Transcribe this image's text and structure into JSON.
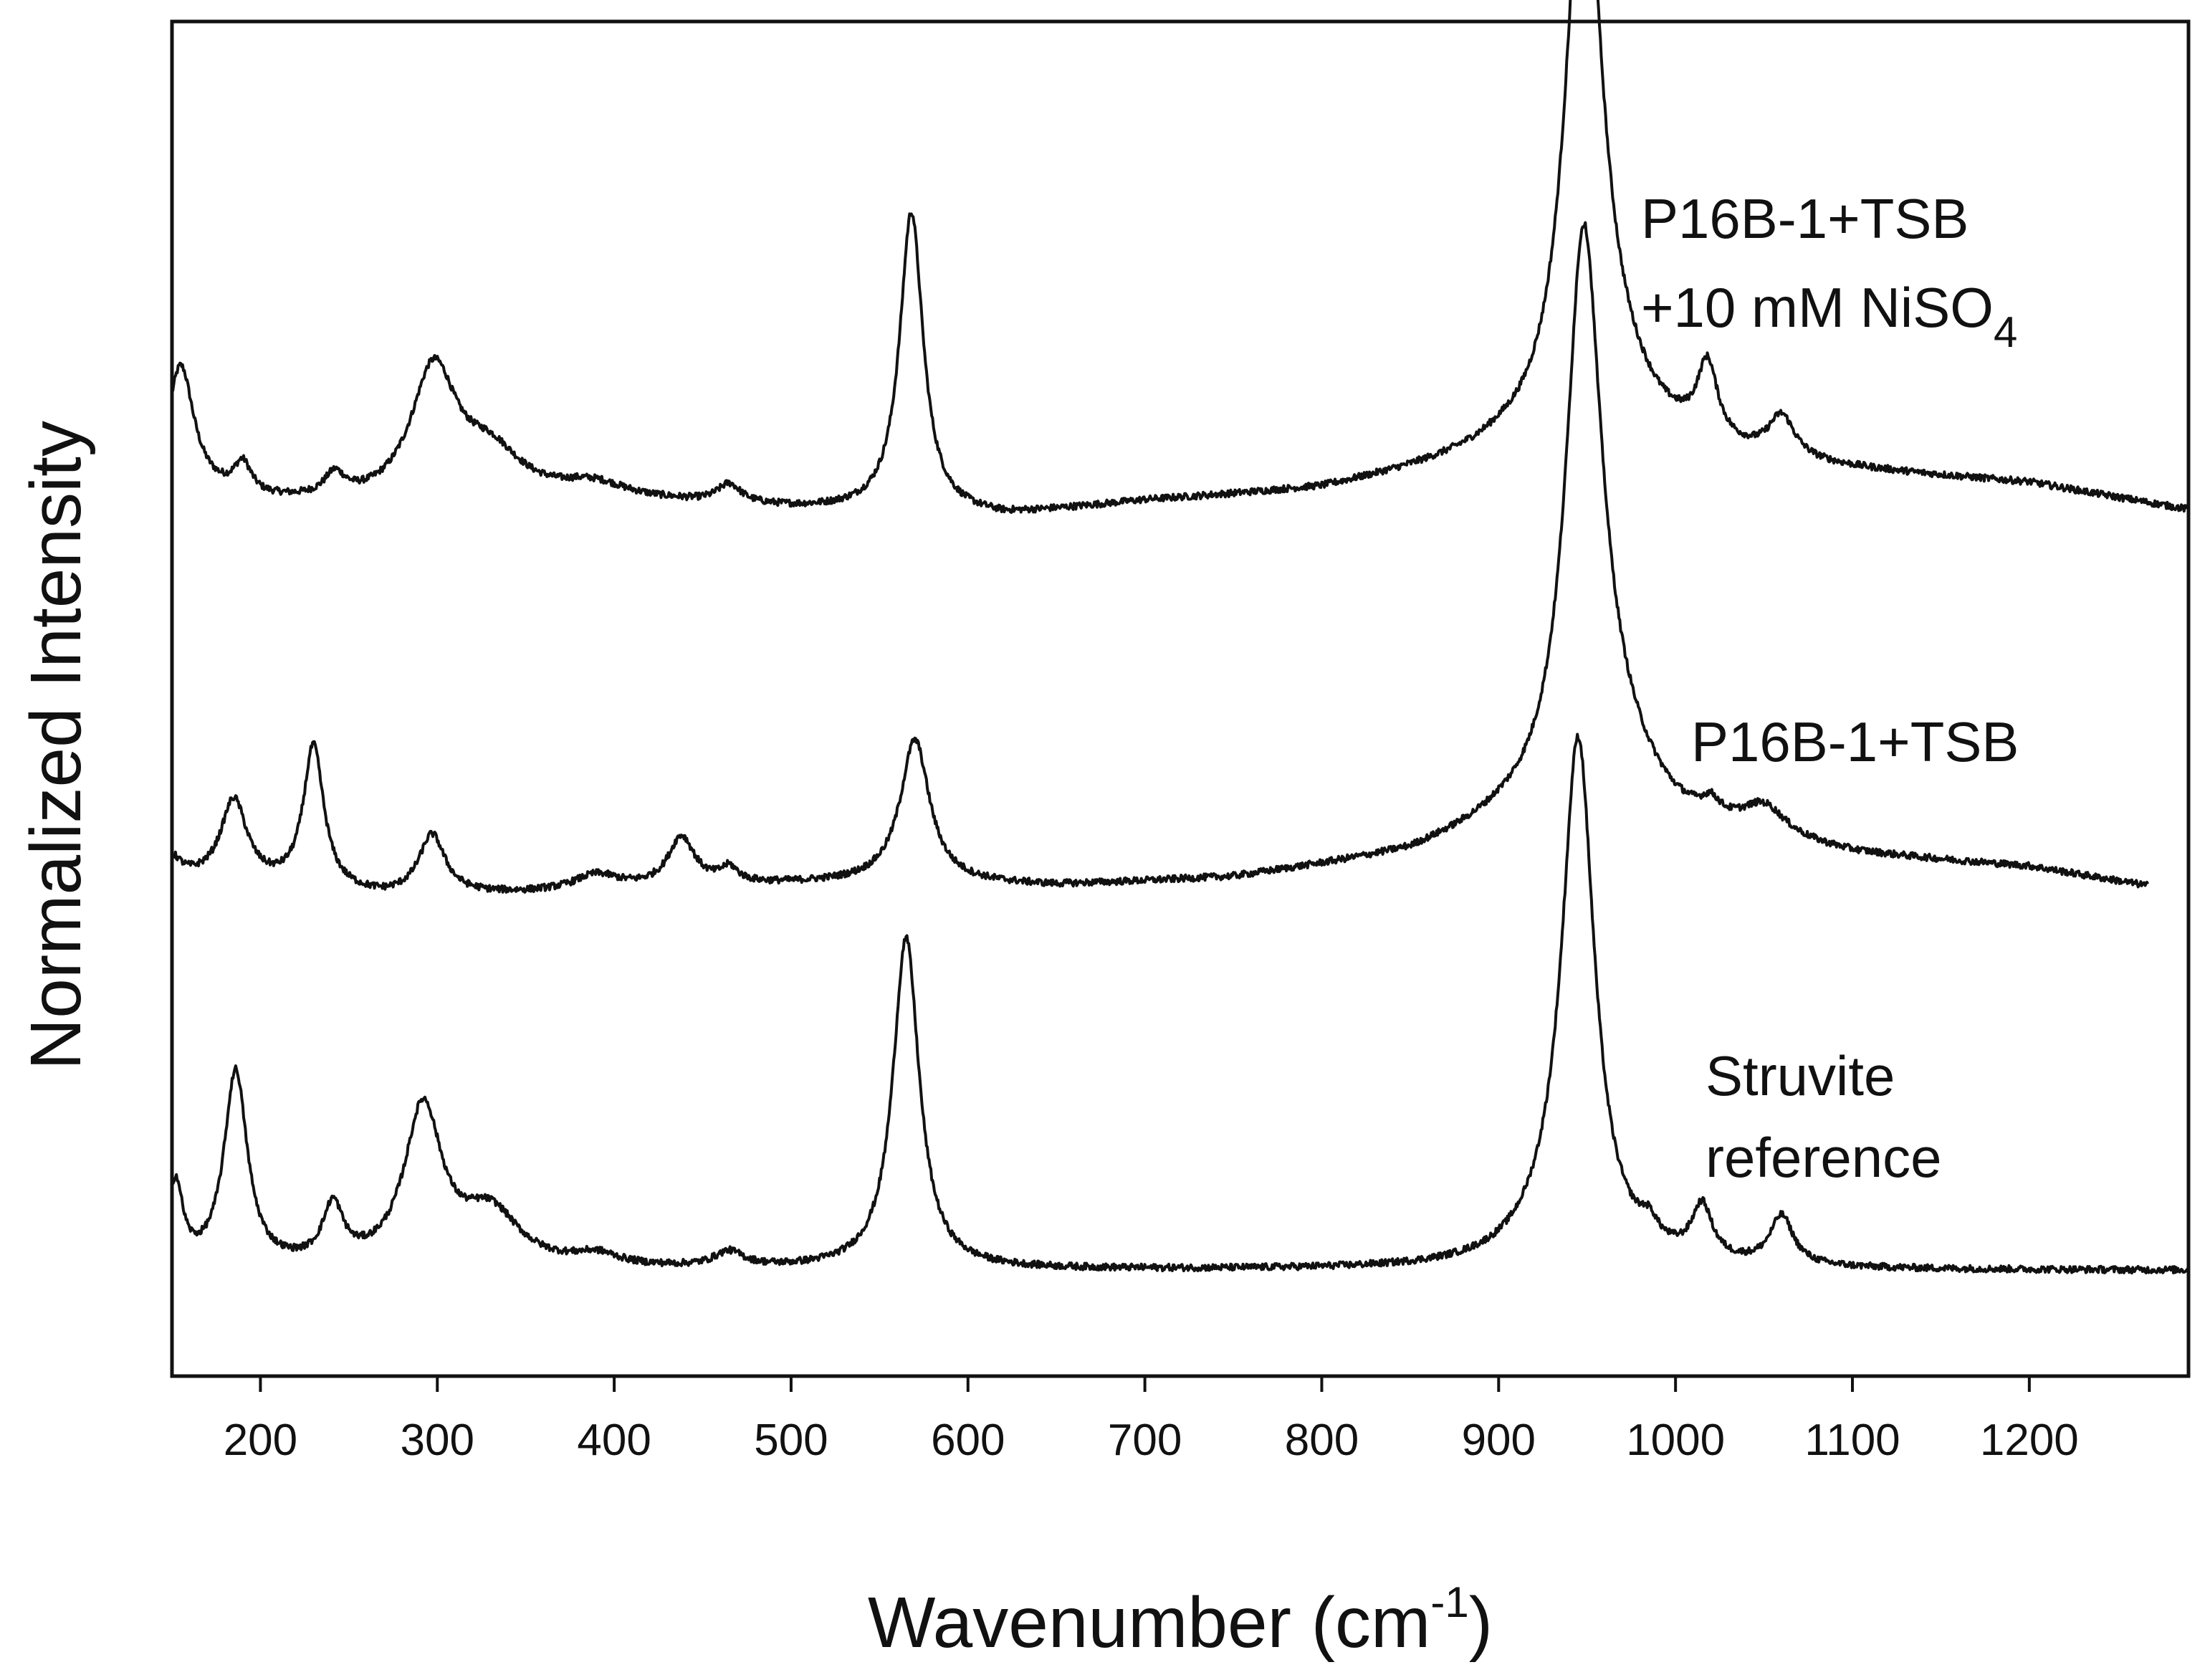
{
  "chart_data": {
    "type": "line",
    "title": "",
    "xlabel_main": "Wavenumber (cm",
    "xlabel_sup": "-1",
    "xlabel_close": ")",
    "ylabel": "Normalized Intensity",
    "xlim": [
      150,
      1290
    ],
    "ylim": [
      0,
      3.6
    ],
    "xticks": [
      200,
      300,
      400,
      500,
      600,
      700,
      800,
      900,
      1000,
      1100,
      1200
    ],
    "xtick_labels": [
      "200",
      "300",
      "400",
      "500",
      "600",
      "700",
      "800",
      "900",
      "1000",
      "1100",
      "1200"
    ],
    "y_ticks_shown": false,
    "grid": false,
    "series": [
      {
        "name": "P16B-1+TSB +10 mM NiSO4",
        "label_line1": "P16B-1+TSB",
        "label_line2_main": "+10 mM NiSO",
        "label_line2_sub": "4",
        "x_range": [
          150,
          1290
        ],
        "baseline": [
          [
            150,
            2.35
          ],
          [
            200,
            2.32
          ],
          [
            300,
            2.3
          ],
          [
            380,
            2.33
          ],
          [
            500,
            2.3
          ],
          [
            620,
            2.28
          ],
          [
            700,
            2.32
          ],
          [
            800,
            2.35
          ],
          [
            900,
            2.43
          ],
          [
            1000,
            2.43
          ],
          [
            1100,
            2.4
          ],
          [
            1200,
            2.37
          ],
          [
            1290,
            2.3
          ]
        ],
        "peaks": [
          {
            "center": 155,
            "height": 0.33,
            "width": 9
          },
          {
            "center": 190,
            "height": 0.08,
            "width": 6
          },
          {
            "center": 242,
            "height": 0.06,
            "width": 7
          },
          {
            "center": 298,
            "height": 0.36,
            "width": 16
          },
          {
            "center": 330,
            "height": 0.12,
            "width": 22
          },
          {
            "center": 390,
            "height": 0.03,
            "width": 20
          },
          {
            "center": 465,
            "height": 0.05,
            "width": 8
          },
          {
            "center": 568,
            "height": 0.8,
            "width": 8
          },
          {
            "center": 948,
            "height": 1.52,
            "width": 12
          },
          {
            "center": 960,
            "height": 0.18,
            "width": 30
          },
          {
            "center": 1018,
            "height": 0.2,
            "width": 7
          },
          {
            "center": 1060,
            "height": 0.11,
            "width": 9
          }
        ]
      },
      {
        "name": "P16B-1+TSB",
        "label_line1": "P16B-1+TSB",
        "x_range": [
          150,
          1267
        ],
        "baseline": [
          [
            150,
            1.32
          ],
          [
            200,
            1.3
          ],
          [
            270,
            1.27
          ],
          [
            350,
            1.28
          ],
          [
            450,
            1.3
          ],
          [
            550,
            1.31
          ],
          [
            650,
            1.3
          ],
          [
            750,
            1.32
          ],
          [
            850,
            1.38
          ],
          [
            900,
            1.45
          ],
          [
            960,
            1.5
          ],
          [
            1000,
            1.44
          ],
          [
            1100,
            1.38
          ],
          [
            1200,
            1.35
          ],
          [
            1267,
            1.3
          ]
        ],
        "peaks": [
          {
            "center": 150,
            "height": 0.05,
            "width": 6
          },
          {
            "center": 185,
            "height": 0.22,
            "width": 9
          },
          {
            "center": 230,
            "height": 0.38,
            "width": 7
          },
          {
            "center": 297,
            "height": 0.16,
            "width": 9
          },
          {
            "center": 390,
            "height": 0.04,
            "width": 15
          },
          {
            "center": 438,
            "height": 0.13,
            "width": 9
          },
          {
            "center": 465,
            "height": 0.04,
            "width": 6
          },
          {
            "center": 570,
            "height": 0.38,
            "width": 10
          },
          {
            "center": 948,
            "height": 1.45,
            "width": 12
          },
          {
            "center": 962,
            "height": 0.15,
            "width": 28
          },
          {
            "center": 1020,
            "height": 0.04,
            "width": 6
          },
          {
            "center": 1050,
            "height": 0.08,
            "width": 15
          }
        ]
      },
      {
        "name": "Struvite reference",
        "label_line1": "Struvite",
        "label_line2_main": "reference",
        "x_range": [
          150,
          1290
        ],
        "baseline": [
          [
            150,
            0.28
          ],
          [
            300,
            0.28
          ],
          [
            600,
            0.28
          ],
          [
            900,
            0.28
          ],
          [
            1100,
            0.28
          ],
          [
            1290,
            0.28
          ]
        ],
        "peaks": [
          {
            "center": 152,
            "height": 0.22,
            "width": 5
          },
          {
            "center": 186,
            "height": 0.52,
            "width": 8
          },
          {
            "center": 241,
            "height": 0.15,
            "width": 7
          },
          {
            "center": 292,
            "height": 0.42,
            "width": 13
          },
          {
            "center": 330,
            "height": 0.14,
            "width": 20
          },
          {
            "center": 390,
            "height": 0.03,
            "width": 15
          },
          {
            "center": 465,
            "height": 0.04,
            "width": 10
          },
          {
            "center": 565,
            "height": 0.88,
            "width": 9
          },
          {
            "center": 945,
            "height": 1.33,
            "width": 11
          },
          {
            "center": 935,
            "height": 0.1,
            "width": 25
          },
          {
            "center": 985,
            "height": 0.05,
            "width": 6
          },
          {
            "center": 1015,
            "height": 0.14,
            "width": 7
          },
          {
            "center": 1060,
            "height": 0.13,
            "width": 8
          }
        ]
      }
    ]
  }
}
